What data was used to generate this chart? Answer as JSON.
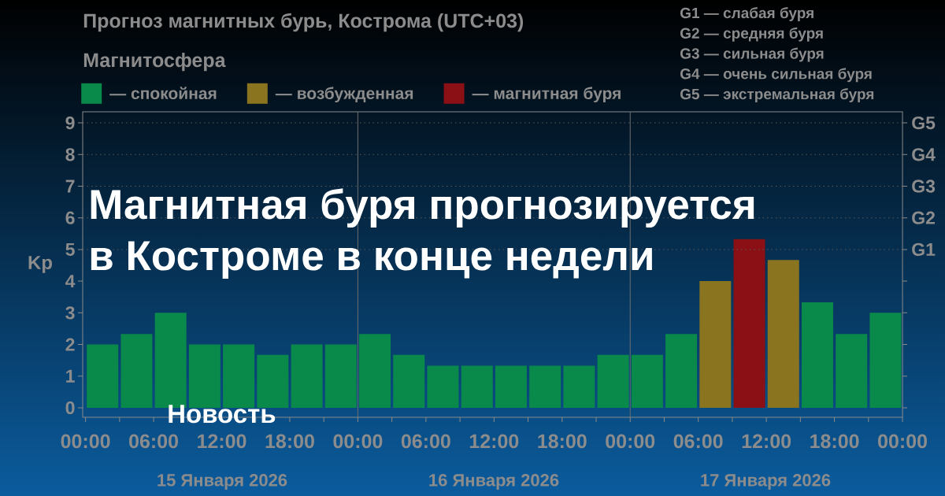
{
  "chart_data": {
    "type": "bar",
    "title": "Прогноз магнитных бурь, Кострома (UTC+03)",
    "subtitle": "Магнитосфера",
    "ylabel": "Kp",
    "x": [
      "2026-01-15T01:30",
      "2026-01-15T04:30",
      "2026-01-15T07:30",
      "2026-01-15T10:30",
      "2026-01-15T13:30",
      "2026-01-15T16:30",
      "2026-01-15T19:30",
      "2026-01-15T22:30",
      "2026-01-16T01:30",
      "2026-01-16T04:30",
      "2026-01-16T07:30",
      "2026-01-16T10:30",
      "2026-01-16T13:30",
      "2026-01-16T16:30",
      "2026-01-16T19:30",
      "2026-01-16T22:30",
      "2026-01-17T01:30",
      "2026-01-17T04:30",
      "2026-01-17T07:30",
      "2026-01-17T10:30",
      "2026-01-17T13:30",
      "2026-01-17T16:30",
      "2026-01-17T19:30",
      "2026-01-17T22:30"
    ],
    "series": [
      {
        "name": "— спокойная",
        "color": "#0a8a4a",
        "values": [
          2,
          2.33,
          3,
          2,
          2,
          1.67,
          2,
          2,
          2.33,
          1.67,
          1.33,
          1.33,
          1.33,
          1.33,
          1.33,
          1.67,
          1.67,
          2.33,
          null,
          null,
          null,
          3.33,
          2.33,
          3
        ]
      },
      {
        "name": "— возбужденная",
        "color": "#8a7420",
        "values": [
          null,
          null,
          null,
          null,
          null,
          null,
          null,
          null,
          null,
          null,
          null,
          null,
          null,
          null,
          null,
          null,
          null,
          null,
          4,
          null,
          4.67,
          null,
          null,
          null
        ]
      },
      {
        "name": "— магнитная буря",
        "color": "#8a1016",
        "values": [
          null,
          null,
          null,
          null,
          null,
          null,
          null,
          null,
          null,
          null,
          null,
          null,
          null,
          null,
          null,
          null,
          null,
          null,
          null,
          5.33,
          null,
          null,
          null,
          null
        ]
      }
    ],
    "xlim": [
      "2026-01-14T23:45",
      "2026-01-18T00:00"
    ],
    "ylim": [
      -0.3,
      9.35
    ],
    "xticks": [
      {
        "value": "2026-01-15T00:00",
        "label": "00:00"
      },
      {
        "value": "2026-01-15T03:00",
        "label": null
      },
      {
        "value": "2026-01-15T06:00",
        "label": "06:00"
      },
      {
        "value": "2026-01-15T09:00",
        "label": null
      },
      {
        "value": "2026-01-15T12:00",
        "label": "12:00"
      },
      {
        "value": "2026-01-15T15:00",
        "label": null
      },
      {
        "value": "2026-01-15T18:00",
        "label": "18:00"
      },
      {
        "value": "2026-01-15T21:00",
        "label": null
      },
      {
        "value": "2026-01-16T00:00",
        "label": "00:00"
      },
      {
        "value": "2026-01-16T03:00",
        "label": null
      },
      {
        "value": "2026-01-16T06:00",
        "label": "06:00"
      },
      {
        "value": "2026-01-16T09:00",
        "label": null
      },
      {
        "value": "2026-01-16T12:00",
        "label": "12:00"
      },
      {
        "value": "2026-01-16T15:00",
        "label": null
      },
      {
        "value": "2026-01-16T18:00",
        "label": "18:00"
      },
      {
        "value": "2026-01-16T21:00",
        "label": null
      },
      {
        "value": "2026-01-17T00:00",
        "label": "00:00"
      },
      {
        "value": "2026-01-17T03:00",
        "label": null
      },
      {
        "value": "2026-01-17T06:00",
        "label": "06:00"
      },
      {
        "value": "2026-01-17T09:00",
        "label": null
      },
      {
        "value": "2026-01-17T12:00",
        "label": "12:00"
      },
      {
        "value": "2026-01-17T15:00",
        "label": null
      },
      {
        "value": "2026-01-17T18:00",
        "label": "18:00"
      },
      {
        "value": "2026-01-17T21:00",
        "label": null
      },
      {
        "value": "2026-01-18T00:00",
        "label": "00:00"
      }
    ],
    "yticks": [
      0,
      1,
      2,
      3,
      4,
      5,
      6,
      7,
      8,
      9
    ],
    "ref_lines": [
      {
        "axis": "x",
        "value": "2026-01-16T00:00",
        "color": "#6e6e6e"
      },
      {
        "axis": "x",
        "value": "2026-01-17T00:00",
        "color": "#6e6e6e"
      },
      {
        "axis": "y",
        "value": 5,
        "label": "G1",
        "color": "#5a5a5a",
        "line_style": "dotted"
      },
      {
        "axis": "y",
        "value": 6,
        "label": "G2",
        "color": "#5a5a5a",
        "line_style": "dotted"
      },
      {
        "axis": "y",
        "value": 7,
        "label": "G3",
        "color": "#5a5a5a",
        "line_style": "dotted"
      },
      {
        "axis": "y",
        "value": 8,
        "label": "G4",
        "color": "#5a5a5a",
        "line_style": "dotted"
      },
      {
        "axis": "y",
        "value": 9,
        "label": "G5",
        "color": "#5a5a5a",
        "line_style": "dotted"
      }
    ],
    "legend": "top left",
    "annotations": [
      "Магнитная буря прогнозируется",
      "в Костроме в конце недели",
      "Новость",
      "G1 — слабая буря",
      "G2 — средняя буря",
      "G3 — сильная буря",
      "G4 — очень сильная буря",
      "G5 — экстремальная буря",
      "15 Января 2026",
      "16 Января 2026",
      "17 Января 2026"
    ]
  }
}
